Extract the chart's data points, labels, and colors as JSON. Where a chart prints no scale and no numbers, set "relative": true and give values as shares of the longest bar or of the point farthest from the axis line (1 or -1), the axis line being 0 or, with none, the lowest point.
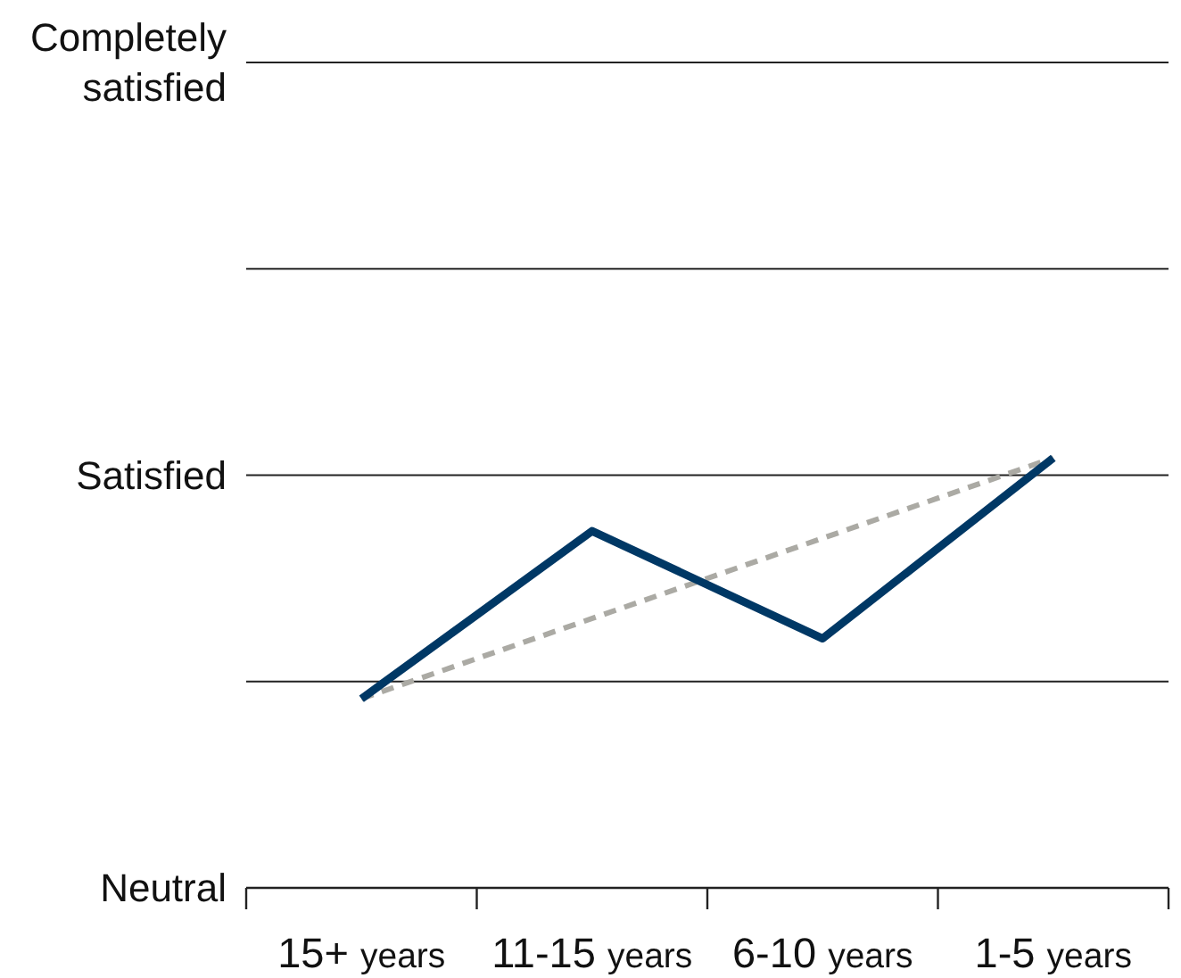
{
  "chart_data": {
    "type": "line",
    "relative": true,
    "categories": [
      "15+ years",
      "11-15 years",
      "6-10 years",
      "1-5 years"
    ],
    "series": [
      {
        "color": "#003865",
        "values": [
          0.44,
          0.83,
          0.58,
          1
        ]
      },
      {
        "type": "line",
        "x": [
          "15+ years",
          "1-5 years"
        ],
        "values": [
          0.44,
          1
        ],
        "color": "#abaaa4",
        "line_style": "dashed"
      }
    ],
    "ref_lines": [
      {
        "axis": "y",
        "value": 0.48,
        "label": null
      },
      {
        "axis": "y",
        "value": 0.96,
        "label": "Satisfied"
      },
      {
        "axis": "y",
        "value": 1.44,
        "label": null
      },
      {
        "axis": "y",
        "value": 1.92,
        "label": "Completely satisfied"
      }
    ],
    "annotations": [
      "Neutral"
    ]
  }
}
